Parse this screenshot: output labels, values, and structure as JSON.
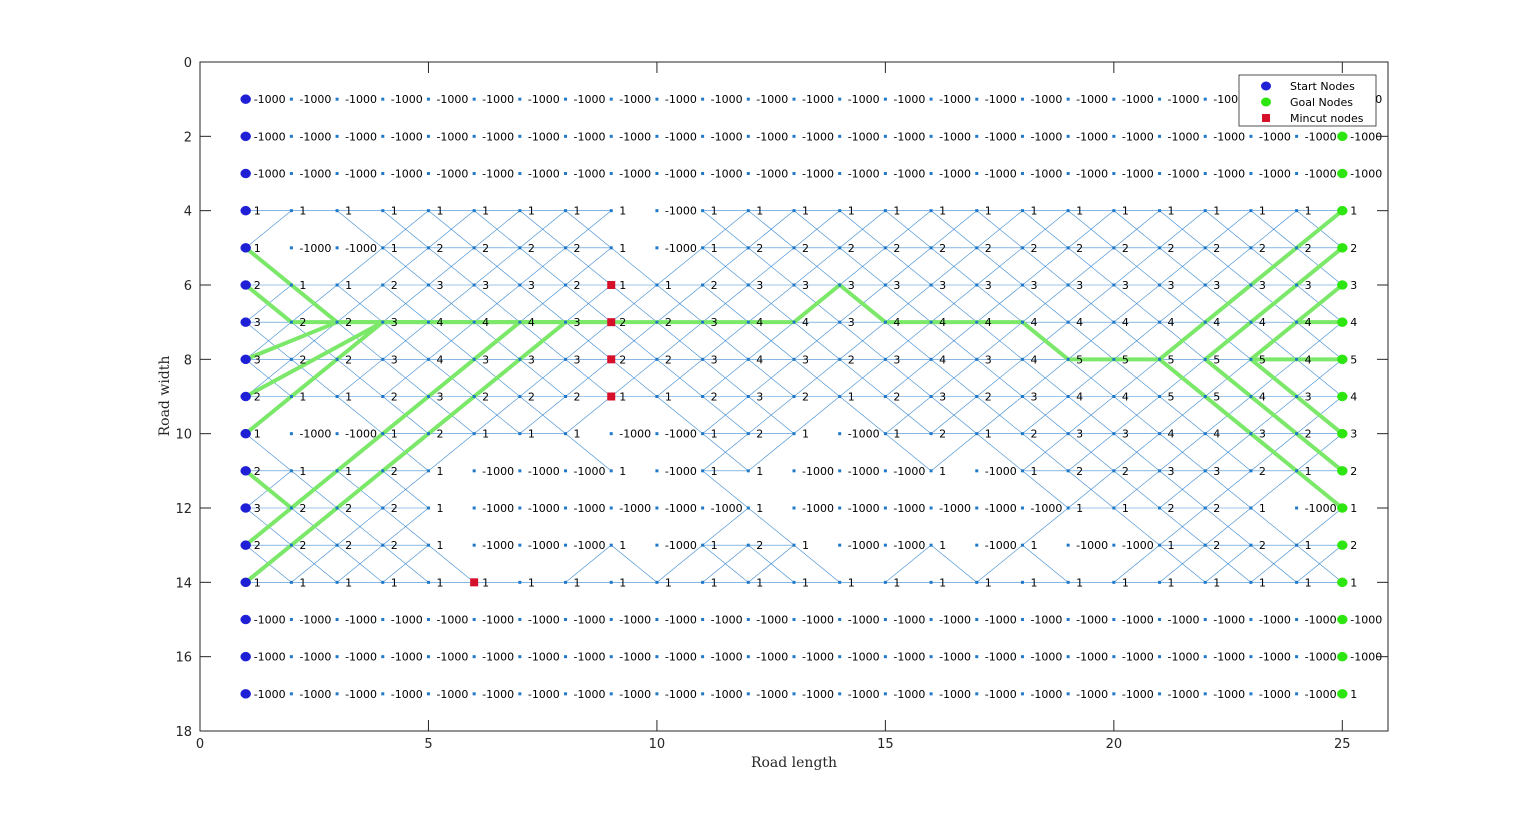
{
  "chart_data": {
    "type": "scatter",
    "title": "",
    "xlabel": "Road length",
    "ylabel": "Road width",
    "xlim": [
      0,
      26
    ],
    "ylim": [
      0,
      18
    ],
    "y_reversed": true,
    "xticks": [
      0,
      5,
      10,
      15,
      20,
      25
    ],
    "yticks": [
      0,
      2,
      4,
      6,
      8,
      10,
      12,
      14,
      16,
      18
    ],
    "grid": false,
    "legend_position": "top-right",
    "columns": [
      1,
      2,
      3,
      4,
      5,
      6,
      7,
      8,
      9,
      10,
      11,
      12,
      13,
      14,
      15,
      16,
      17,
      18,
      19,
      20,
      21,
      22,
      23,
      24,
      25
    ],
    "rows": [
      1,
      2,
      3,
      4,
      5,
      6,
      7,
      8,
      9,
      10,
      11,
      12,
      13,
      14,
      15,
      16,
      17
    ],
    "node_values": [
      [
        "-1000",
        "-1000",
        "-1000",
        "-1000",
        "-1000",
        "-1000",
        "-1000",
        "-1000",
        "-1000",
        "-1000",
        "-1000",
        "-1000",
        "-1000",
        "-1000",
        "-1000",
        "-1000",
        "-1000",
        "-1000",
        "-1000",
        "-1000",
        "-1000",
        "-1000",
        "-1000",
        "-1000",
        "-1000"
      ],
      [
        "-1000",
        "-1000",
        "-1000",
        "-1000",
        "-1000",
        "-1000",
        "-1000",
        "-1000",
        "-1000",
        "-1000",
        "-1000",
        "-1000",
        "-1000",
        "-1000",
        "-1000",
        "-1000",
        "-1000",
        "-1000",
        "-1000",
        "-1000",
        "-1000",
        "-1000",
        "-1000",
        "-1000",
        "-1000"
      ],
      [
        "-1000",
        "-1000",
        "-1000",
        "-1000",
        "-1000",
        "-1000",
        "-1000",
        "-1000",
        "-1000",
        "-1000",
        "-1000",
        "-1000",
        "-1000",
        "-1000",
        "-1000",
        "-1000",
        "-1000",
        "-1000",
        "-1000",
        "-1000",
        "-1000",
        "-1000",
        "-1000",
        "-1000",
        "-1000"
      ],
      [
        "1",
        "1",
        "1",
        "1",
        "1",
        "1",
        "1",
        "1",
        "1",
        "-1000",
        "1",
        "1",
        "1",
        "1",
        "1",
        "1",
        "1",
        "1",
        "1",
        "1",
        "1",
        "1",
        "1",
        "1",
        "1"
      ],
      [
        "1",
        "-1000",
        "-1000",
        "1",
        "2",
        "2",
        "2",
        "2",
        "1",
        "-1000",
        "1",
        "2",
        "2",
        "2",
        "2",
        "2",
        "2",
        "2",
        "2",
        "2",
        "2",
        "2",
        "2",
        "2",
        "2"
      ],
      [
        "2",
        "1",
        "1",
        "2",
        "3",
        "3",
        "3",
        "2",
        "1",
        "1",
        "2",
        "3",
        "3",
        "3",
        "3",
        "3",
        "3",
        "3",
        "3",
        "3",
        "3",
        "3",
        "3",
        "3",
        "3"
      ],
      [
        "3",
        "2",
        "2",
        "3",
        "4",
        "4",
        "4",
        "3",
        "2",
        "2",
        "3",
        "4",
        "4",
        "3",
        "4",
        "4",
        "4",
        "4",
        "4",
        "4",
        "4",
        "4",
        "4",
        "4",
        "4"
      ],
      [
        "3",
        "2",
        "2",
        "3",
        "4",
        "3",
        "3",
        "3",
        "2",
        "2",
        "3",
        "4",
        "3",
        "2",
        "3",
        "4",
        "3",
        "4",
        "5",
        "5",
        "5",
        "5",
        "5",
        "4",
        "5"
      ],
      [
        "2",
        "1",
        "1",
        "2",
        "3",
        "2",
        "2",
        "2",
        "1",
        "1",
        "2",
        "3",
        "2",
        "1",
        "2",
        "3",
        "2",
        "3",
        "4",
        "4",
        "5",
        "5",
        "4",
        "3",
        "4"
      ],
      [
        "1",
        "-1000",
        "-1000",
        "1",
        "2",
        "1",
        "1",
        "1",
        "-1000",
        "-1000",
        "1",
        "2",
        "1",
        "-1000",
        "1",
        "2",
        "1",
        "2",
        "3",
        "3",
        "4",
        "4",
        "3",
        "2",
        "3"
      ],
      [
        "2",
        "1",
        "1",
        "2",
        "1",
        "-1000",
        "-1000",
        "-1000",
        "1",
        "-1000",
        "1",
        "1",
        "-1000",
        "-1000",
        "-1000",
        "1",
        "-1000",
        "1",
        "2",
        "2",
        "3",
        "3",
        "2",
        "1",
        "2"
      ],
      [
        "3",
        "2",
        "2",
        "2",
        "1",
        "-1000",
        "-1000",
        "-1000",
        "-1000",
        "-1000",
        "-1000",
        "1",
        "-1000",
        "-1000",
        "-1000",
        "-1000",
        "-1000",
        "-1000",
        "1",
        "1",
        "2",
        "2",
        "1",
        "-1000",
        "1"
      ],
      [
        "2",
        "2",
        "2",
        "2",
        "1",
        "-1000",
        "-1000",
        "-1000",
        "1",
        "-1000",
        "1",
        "2",
        "1",
        "-1000",
        "-1000",
        "1",
        "-1000",
        "1",
        "-1000",
        "-1000",
        "1",
        "2",
        "2",
        "1",
        "2"
      ],
      [
        "1",
        "1",
        "1",
        "1",
        "1",
        "1",
        "1",
        "1",
        "1",
        "1",
        "1",
        "1",
        "1",
        "1",
        "1",
        "1",
        "1",
        "1",
        "1",
        "1",
        "1",
        "1",
        "1",
        "1",
        "1"
      ],
      [
        "-1000",
        "-1000",
        "-1000",
        "-1000",
        "-1000",
        "-1000",
        "-1000",
        "-1000",
        "-1000",
        "-1000",
        "-1000",
        "-1000",
        "-1000",
        "-1000",
        "-1000",
        "-1000",
        "-1000",
        "-1000",
        "-1000",
        "-1000",
        "-1000",
        "-1000",
        "-1000",
        "-1000",
        "-1000"
      ],
      [
        "-1000",
        "-1000",
        "-1000",
        "-1000",
        "-1000",
        "-1000",
        "-1000",
        "-1000",
        "-1000",
        "-1000",
        "-1000",
        "-1000",
        "-1000",
        "-1000",
        "-1000",
        "-1000",
        "-1000",
        "-1000",
        "-1000",
        "-1000",
        "-1000",
        "-1000",
        "-1000",
        "-1000",
        "-1000"
      ],
      [
        "-1000",
        "-1000",
        "-1000",
        "-1000",
        "-1000",
        "-1000",
        "-1000",
        "-1000",
        "-1000",
        "-1000",
        "-1000",
        "-1000",
        "-1000",
        "-1000",
        "-1000",
        "-1000",
        "-1000",
        "-1000",
        "-1000",
        "-1000",
        "-1000",
        "-1000",
        "-1000",
        "-1000",
        "1"
      ]
    ],
    "series": [
      {
        "name": "Start Nodes",
        "marker": "circle",
        "color": "#1f1fd6",
        "points": [
          [
            1,
            1
          ],
          [
            1,
            2
          ],
          [
            1,
            3
          ],
          [
            1,
            4
          ],
          [
            1,
            5
          ],
          [
            1,
            6
          ],
          [
            1,
            7
          ],
          [
            1,
            8
          ],
          [
            1,
            9
          ],
          [
            1,
            10
          ],
          [
            1,
            11
          ],
          [
            1,
            12
          ],
          [
            1,
            13
          ],
          [
            1,
            14
          ],
          [
            1,
            15
          ],
          [
            1,
            16
          ],
          [
            1,
            17
          ]
        ]
      },
      {
        "name": "Goal Nodes",
        "marker": "circle",
        "color": "#2ee60f",
        "points": [
          [
            25,
            2
          ],
          [
            25,
            3
          ],
          [
            25,
            4
          ],
          [
            25,
            5
          ],
          [
            25,
            6
          ],
          [
            25,
            7
          ],
          [
            25,
            8
          ],
          [
            25,
            9
          ],
          [
            25,
            10
          ],
          [
            25,
            11
          ],
          [
            25,
            12
          ],
          [
            25,
            13
          ],
          [
            25,
            14
          ],
          [
            25,
            15
          ],
          [
            25,
            16
          ],
          [
            25,
            17
          ]
        ]
      },
      {
        "name": "Mincut nodes",
        "marker": "square",
        "color": "#d6102a",
        "points": [
          [
            9,
            6
          ],
          [
            9,
            7
          ],
          [
            9,
            8
          ],
          [
            9,
            9
          ],
          [
            6,
            14
          ]
        ]
      }
    ],
    "paths": [
      [
        [
          1,
          5
        ],
        [
          3,
          7
        ],
        [
          9,
          7
        ],
        [
          13,
          7
        ],
        [
          14,
          6
        ],
        [
          15,
          7
        ],
        [
          18,
          7
        ],
        [
          19,
          8
        ],
        [
          21,
          8
        ],
        [
          25,
          4
        ]
      ],
      [
        [
          1,
          6
        ],
        [
          2,
          7
        ],
        [
          9,
          7
        ]
      ],
      [
        [
          1,
          8
        ],
        [
          3,
          7
        ]
      ],
      [
        [
          1,
          9
        ],
        [
          4,
          7
        ]
      ],
      [
        [
          1,
          10
        ],
        [
          4,
          7
        ]
      ],
      [
        [
          1,
          11
        ],
        [
          2,
          12
        ]
      ],
      [
        [
          1,
          13
        ],
        [
          7,
          7
        ]
      ],
      [
        [
          1,
          14
        ],
        [
          8,
          7
        ]
      ],
      [
        [
          21,
          8
        ],
        [
          25,
          12
        ]
      ],
      [
        [
          22,
          8
        ],
        [
          25,
          11
        ]
      ],
      [
        [
          22,
          8
        ],
        [
          25,
          5
        ]
      ],
      [
        [
          23,
          8
        ],
        [
          25,
          10
        ]
      ],
      [
        [
          23,
          8
        ],
        [
          25,
          6
        ]
      ],
      [
        [
          23,
          8
        ],
        [
          25,
          8
        ]
      ],
      [
        [
          24,
          7
        ],
        [
          25,
          7
        ]
      ]
    ],
    "colors": {
      "edge": "#1f78c8",
      "path": "#7be86a",
      "axis": "#262626",
      "legend_border": "#262626"
    }
  }
}
